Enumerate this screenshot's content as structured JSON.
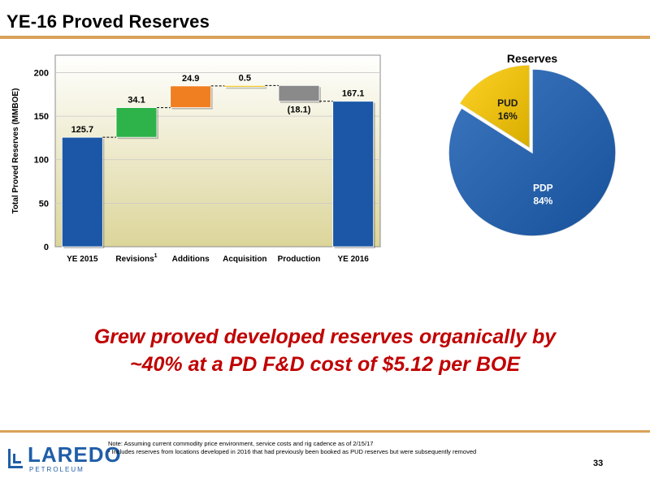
{
  "slide": {
    "title": "YE-16 Proved Reserves",
    "tagline_line1": "Grew proved developed reserves organically by",
    "tagline_line2": "~40% at a PD F&D cost of $5.12 per BOE",
    "note_line1": "Note: Assuming current commodity price environment, service costs and rig cadence as of 2/15/17",
    "note_line2": "¹ Includes reserves from locations developed in 2016 that had previously been booked as PUD reserves but were subsequently removed",
    "page_number": "33",
    "logo_word": "LAREDO",
    "logo_sub": "PETROLEUM"
  },
  "colors": {
    "accent_rule": "#d9a35a",
    "tagline": "#c00000",
    "logo": "#1f5ea8",
    "plot_bg_top": "#ffffff",
    "plot_bg_bottom": "#dcd59a"
  },
  "chart_data": [
    {
      "type": "bar",
      "subtype": "waterfall",
      "ylabel": "Total Proved Reserves (MMBOE)",
      "ylim": [
        0,
        220
      ],
      "yticks": [
        0,
        50,
        100,
        150,
        200
      ],
      "grid": true,
      "categories": [
        "YE 2015",
        "Revisions",
        "Additions",
        "Acquisition",
        "Production",
        "YE 2016"
      ],
      "category_superscripts": [
        "",
        "1",
        "",
        "",
        "",
        ""
      ],
      "values": [
        125.7,
        34.1,
        24.9,
        0.5,
        -18.1,
        167.1
      ],
      "value_labels": [
        "125.7",
        "34.1",
        "24.9",
        "0.5",
        "(18.1)",
        "167.1"
      ],
      "bar_kinds": [
        "total",
        "delta",
        "delta",
        "delta",
        "delta",
        "total"
      ],
      "bar_colors": [
        "#1b57a6",
        "#2db34a",
        "#f07f22",
        "#f5c518",
        "#8a8a8a",
        "#1b57a6"
      ]
    },
    {
      "type": "pie",
      "title": "Reserves",
      "slices": [
        {
          "label": "PDP",
          "percent_label": "84%",
          "value": 84,
          "color": "#1b5fb5",
          "label_color": "#ffffff"
        },
        {
          "label": "PUD",
          "percent_label": "16%",
          "value": 16,
          "color": "#fecb00",
          "label_color": "#1a1a1a"
        }
      ]
    }
  ]
}
